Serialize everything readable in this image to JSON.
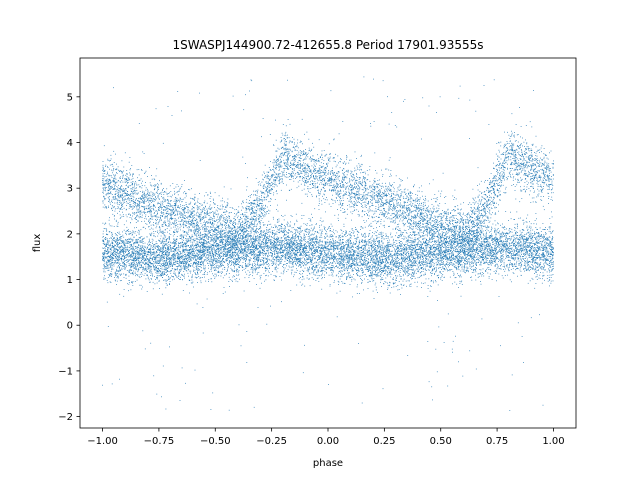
{
  "chart_data": {
    "type": "scatter",
    "title": "1SWASPJ144900.72-412655.8 Period 17901.93555s",
    "xlabel": "phase",
    "ylabel": "flux",
    "xlim": [
      -1.1,
      1.1
    ],
    "ylim": [
      -2.25,
      5.85
    ],
    "xticks": [
      -1.0,
      -0.75,
      -0.5,
      -0.25,
      0.0,
      0.25,
      0.5,
      0.75,
      1.0
    ],
    "xtick_labels": [
      "−1.00",
      "−0.75",
      "−0.50",
      "−0.25",
      "0.00",
      "0.25",
      "0.50",
      "0.75",
      "1.00"
    ],
    "yticks": [
      -2,
      -1,
      0,
      1,
      2,
      3,
      4,
      5
    ],
    "ytick_labels": [
      "−2",
      "−1",
      "0",
      "1",
      "2",
      "3",
      "4",
      "5"
    ],
    "grid": false,
    "legend": "none",
    "marker_color": "#1f77b4",
    "series": [
      {
        "band": "lower",
        "phase": [
          -1.0,
          -0.75,
          -0.5,
          -0.25,
          0.0,
          0.25,
          0.5,
          0.75,
          1.0
        ],
        "flux": [
          1.6,
          1.45,
          1.6,
          1.7,
          1.6,
          1.45,
          1.6,
          1.7,
          1.6
        ],
        "scatter": 0.28,
        "n_points": 11000
      },
      {
        "band": "upper",
        "phase": [
          -1.0,
          -0.75,
          -0.5,
          -0.4,
          -0.3,
          -0.2,
          0.0,
          0.25,
          0.5,
          0.6,
          0.7,
          0.8,
          1.0
        ],
        "flux": [
          3.1,
          2.6,
          2.2,
          2.0,
          2.6,
          3.7,
          3.2,
          2.7,
          2.2,
          2.0,
          2.6,
          3.7,
          3.2
        ],
        "scatter": 0.28,
        "n_points": 6500
      }
    ],
    "outliers": {
      "flux_range": [
        -1.95,
        5.45
      ],
      "n_points": 220
    }
  }
}
